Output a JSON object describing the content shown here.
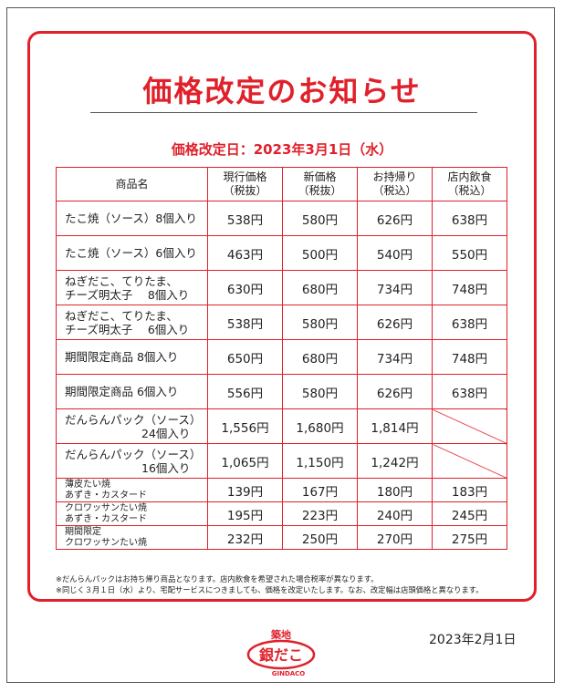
{
  "title": "価格改定のお知らせ",
  "revision_date": "価格改定日：2023年3月1日（水）",
  "table": {
    "headers": [
      {
        "line1": "商品名",
        "line2": ""
      },
      {
        "line1": "現行価格",
        "line2": "（税抜）"
      },
      {
        "line1": "新価格",
        "line2": "（税抜）"
      },
      {
        "line1": "お持帰り",
        "line2": "（税込）"
      },
      {
        "line1": "店内飲食",
        "line2": "（税込）"
      }
    ],
    "rows": [
      {
        "name1": "たこ焼（ソース）8個入り",
        "name2": "",
        "current": "538円",
        "new": "580円",
        "takeout": "626円",
        "eatin": "638円"
      },
      {
        "name1": "たこ焼（ソース）6個入り",
        "name2": "",
        "current": "463円",
        "new": "500円",
        "takeout": "540円",
        "eatin": "550円"
      },
      {
        "name1": "ねぎだこ、てりたま、",
        "name2": "チーズ明太子　 8個入り",
        "current": "630円",
        "new": "680円",
        "takeout": "734円",
        "eatin": "748円"
      },
      {
        "name1": "ねぎだこ、てりたま、",
        "name2": "チーズ明太子　 6個入り",
        "current": "538円",
        "new": "580円",
        "takeout": "626円",
        "eatin": "638円"
      },
      {
        "name1": "期間限定商品 8個入り",
        "name2": "",
        "current": "650円",
        "new": "680円",
        "takeout": "734円",
        "eatin": "748円"
      },
      {
        "name1": "期間限定商品 6個入り",
        "name2": "",
        "current": "556円",
        "new": "580円",
        "takeout": "626円",
        "eatin": "638円"
      },
      {
        "name1": "だんらんパック（ソース）",
        "name2": "24個入り",
        "current": "1,556円",
        "new": "1,680円",
        "takeout": "1,814円",
        "eatin": ""
      },
      {
        "name1": "だんらんパック（ソース）",
        "name2": "16個入り",
        "current": "1,065円",
        "new": "1,150円",
        "takeout": "1,242円",
        "eatin": ""
      },
      {
        "name1": "薄皮たい焼",
        "name2": "あずき・カスタード",
        "current": "139円",
        "new": "167円",
        "takeout": "180円",
        "eatin": "183円"
      },
      {
        "name1": "クロワッサンたい焼",
        "name2": "あずき・カスタード",
        "current": "195円",
        "new": "223円",
        "takeout": "240円",
        "eatin": "245円"
      },
      {
        "name1": "期間限定",
        "name2": "クロワッサンたい焼",
        "current": "232円",
        "new": "250円",
        "takeout": "270円",
        "eatin": "275円"
      }
    ]
  },
  "notes": [
    "※だんらんパックはお持ち帰り商品となります。店内飲食を希望された場合税率が異なります。",
    "※同じく３月１日（水）より、宅配サービスにつきましても、価格を改定いたします。なお、改定幅は店頭価格と異なります。"
  ],
  "logo": {
    "top_text": "築地",
    "main_text": "銀だこ",
    "sub_text": "GINDACO"
  },
  "publish_date": "2023年2月1日",
  "colors": {
    "accent": "#e0202a",
    "text": "#222222",
    "border": "#555555"
  }
}
